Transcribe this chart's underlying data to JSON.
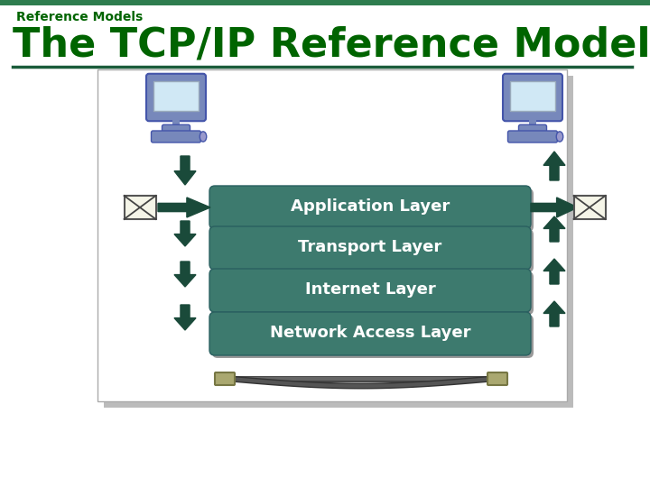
{
  "title": "The TCP/IP Reference Model",
  "subtitle": "Reference Models",
  "bg_color": "#ffffff",
  "title_color": "#006400",
  "subtitle_color": "#006400",
  "title_fontsize": 32,
  "subtitle_fontsize": 10,
  "underline_color": "#1a5c3a",
  "top_bar_color": "#2e7d4f",
  "layers": [
    "Application Layer",
    "Transport Layer",
    "Internet Layer",
    "Network Access Layer"
  ],
  "layer_color": "#3d7a6e",
  "layer_text_color": "#ffffff",
  "layer_fontsize": 13,
  "arrow_color": "#1a4a3a",
  "shadow_color": "#bbbbbb",
  "box_border": "#aaaaaa"
}
